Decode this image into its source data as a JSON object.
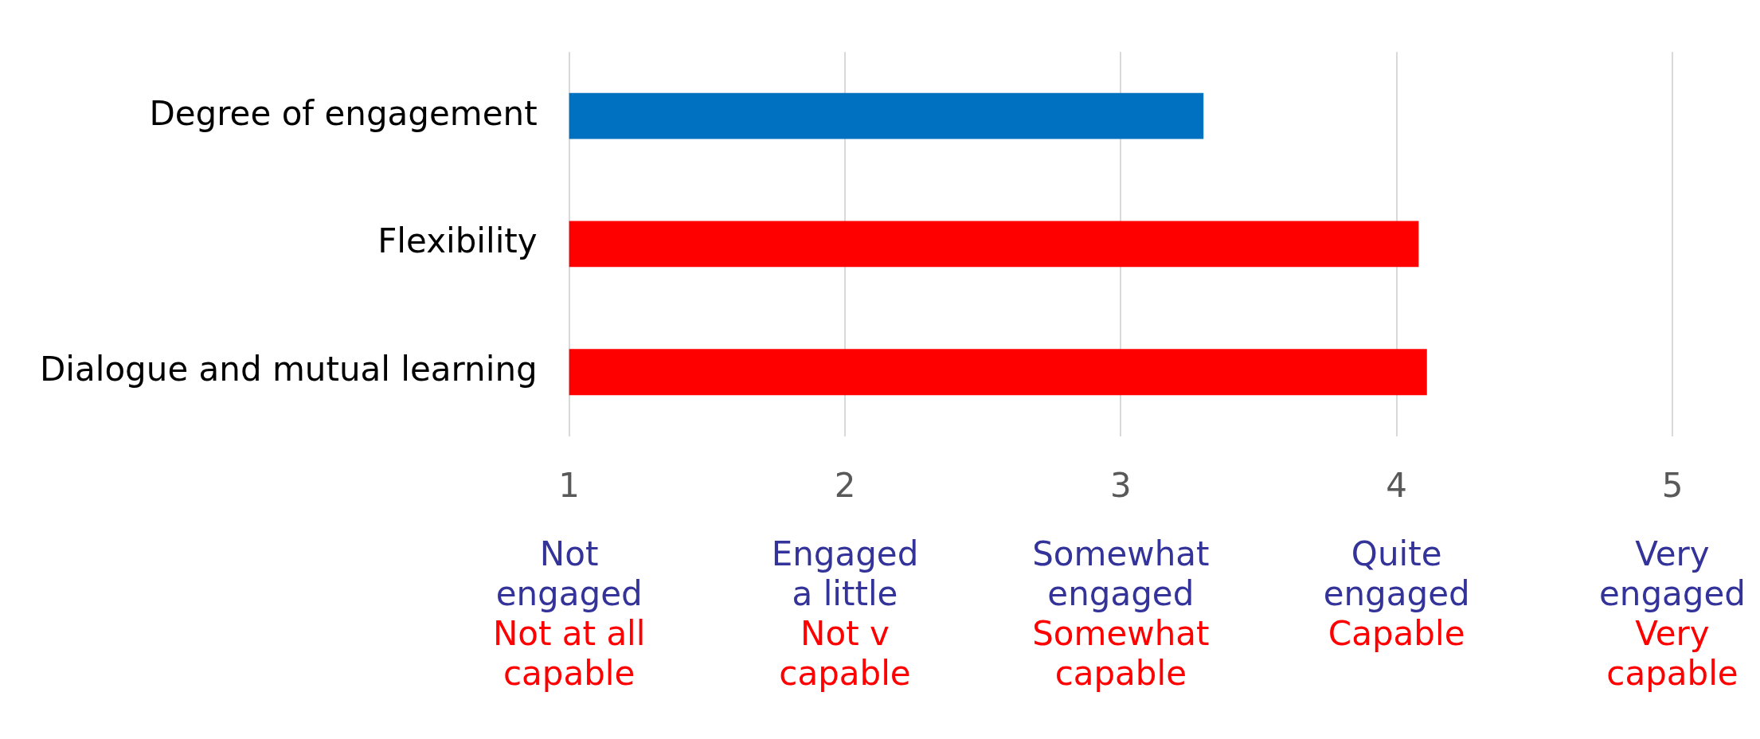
{
  "chart_data": {
    "type": "bar",
    "orientation": "horizontal",
    "categories": [
      "Degree of engagement",
      "Flexibility",
      "Dialogue and mutual learning"
    ],
    "values": [
      3.3,
      4.08,
      4.11
    ],
    "colors": [
      "#0070c0",
      "#ff0000",
      "#ff0000"
    ],
    "xlim": [
      1,
      5
    ],
    "xticks": [
      1,
      2,
      3,
      4,
      5
    ],
    "annotations": [
      "Not engaged",
      "Engaged a little",
      "Somewhat engaged",
      "Quite engaged",
      "Very engaged",
      "Not at all capable",
      "Not v capable",
      "Somewhat capable",
      "Capable",
      "Very capable"
    ],
    "grid": "x",
    "legend": false
  }
}
